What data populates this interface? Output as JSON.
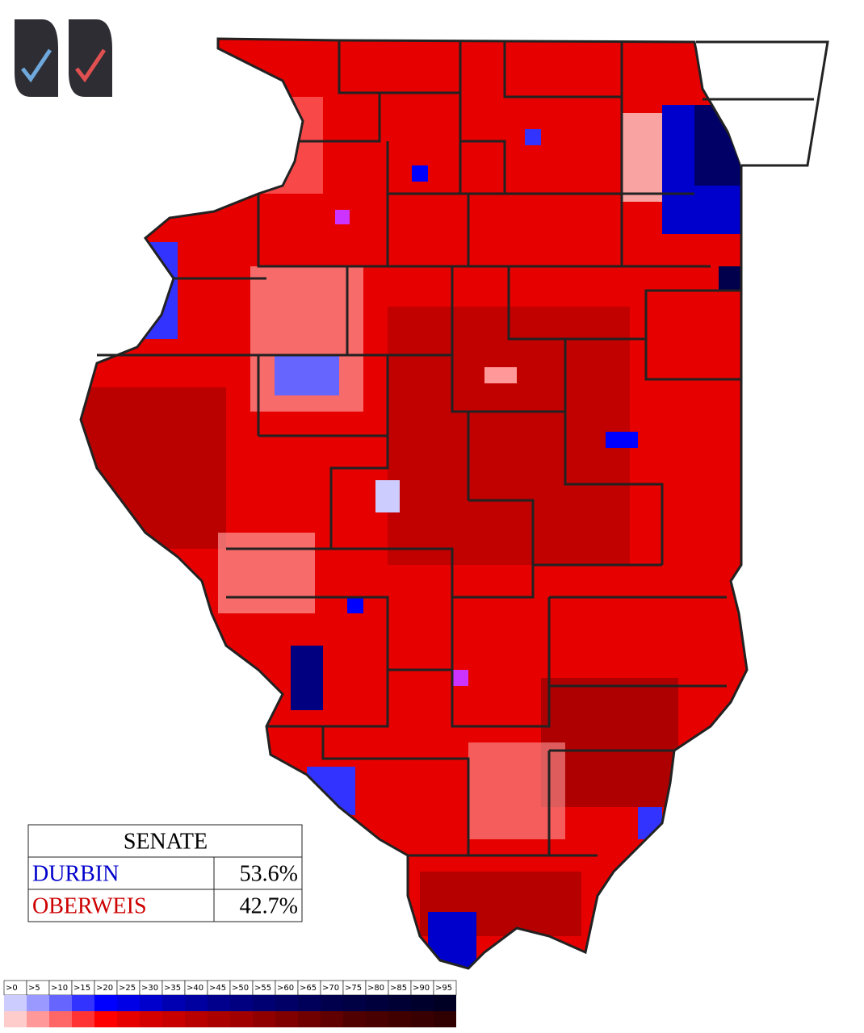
{
  "results": {
    "title": "SENATE",
    "rows": [
      [
        "DURBIN",
        "53.6%"
      ],
      [
        "OBERWEIS",
        "42.7%"
      ]
    ]
  },
  "scale": {
    "labels": [
      ">0",
      ">5",
      ">10",
      ">15",
      ">20",
      ">25",
      ">30",
      ">35",
      ">40",
      ">45",
      ">50",
      ">55",
      ">60",
      ">65",
      ">70",
      ">75",
      ">80",
      ">85",
      ">90",
      ">95"
    ],
    "blue": [
      "#ccccff",
      "#9999ff",
      "#6666ff",
      "#3333ff",
      "#0000ff",
      "#0000e6",
      "#0000cc",
      "#0000b3",
      "#0000a0",
      "#00008c",
      "#000080",
      "#000073",
      "#000066",
      "#00005a",
      "#00004d",
      "#000044",
      "#00003c",
      "#000034",
      "#00002c",
      "#000024"
    ],
    "red": [
      "#ffcccc",
      "#ff9999",
      "#ff6666",
      "#ff3333",
      "#ff0000",
      "#e60000",
      "#d40000",
      "#c80000",
      "#b80000",
      "#aa0000",
      "#a00000",
      "#900000",
      "#800000",
      "#700000",
      "#600000",
      "#500000",
      "#480000",
      "#400000",
      "#380000",
      "#300000"
    ]
  }
}
